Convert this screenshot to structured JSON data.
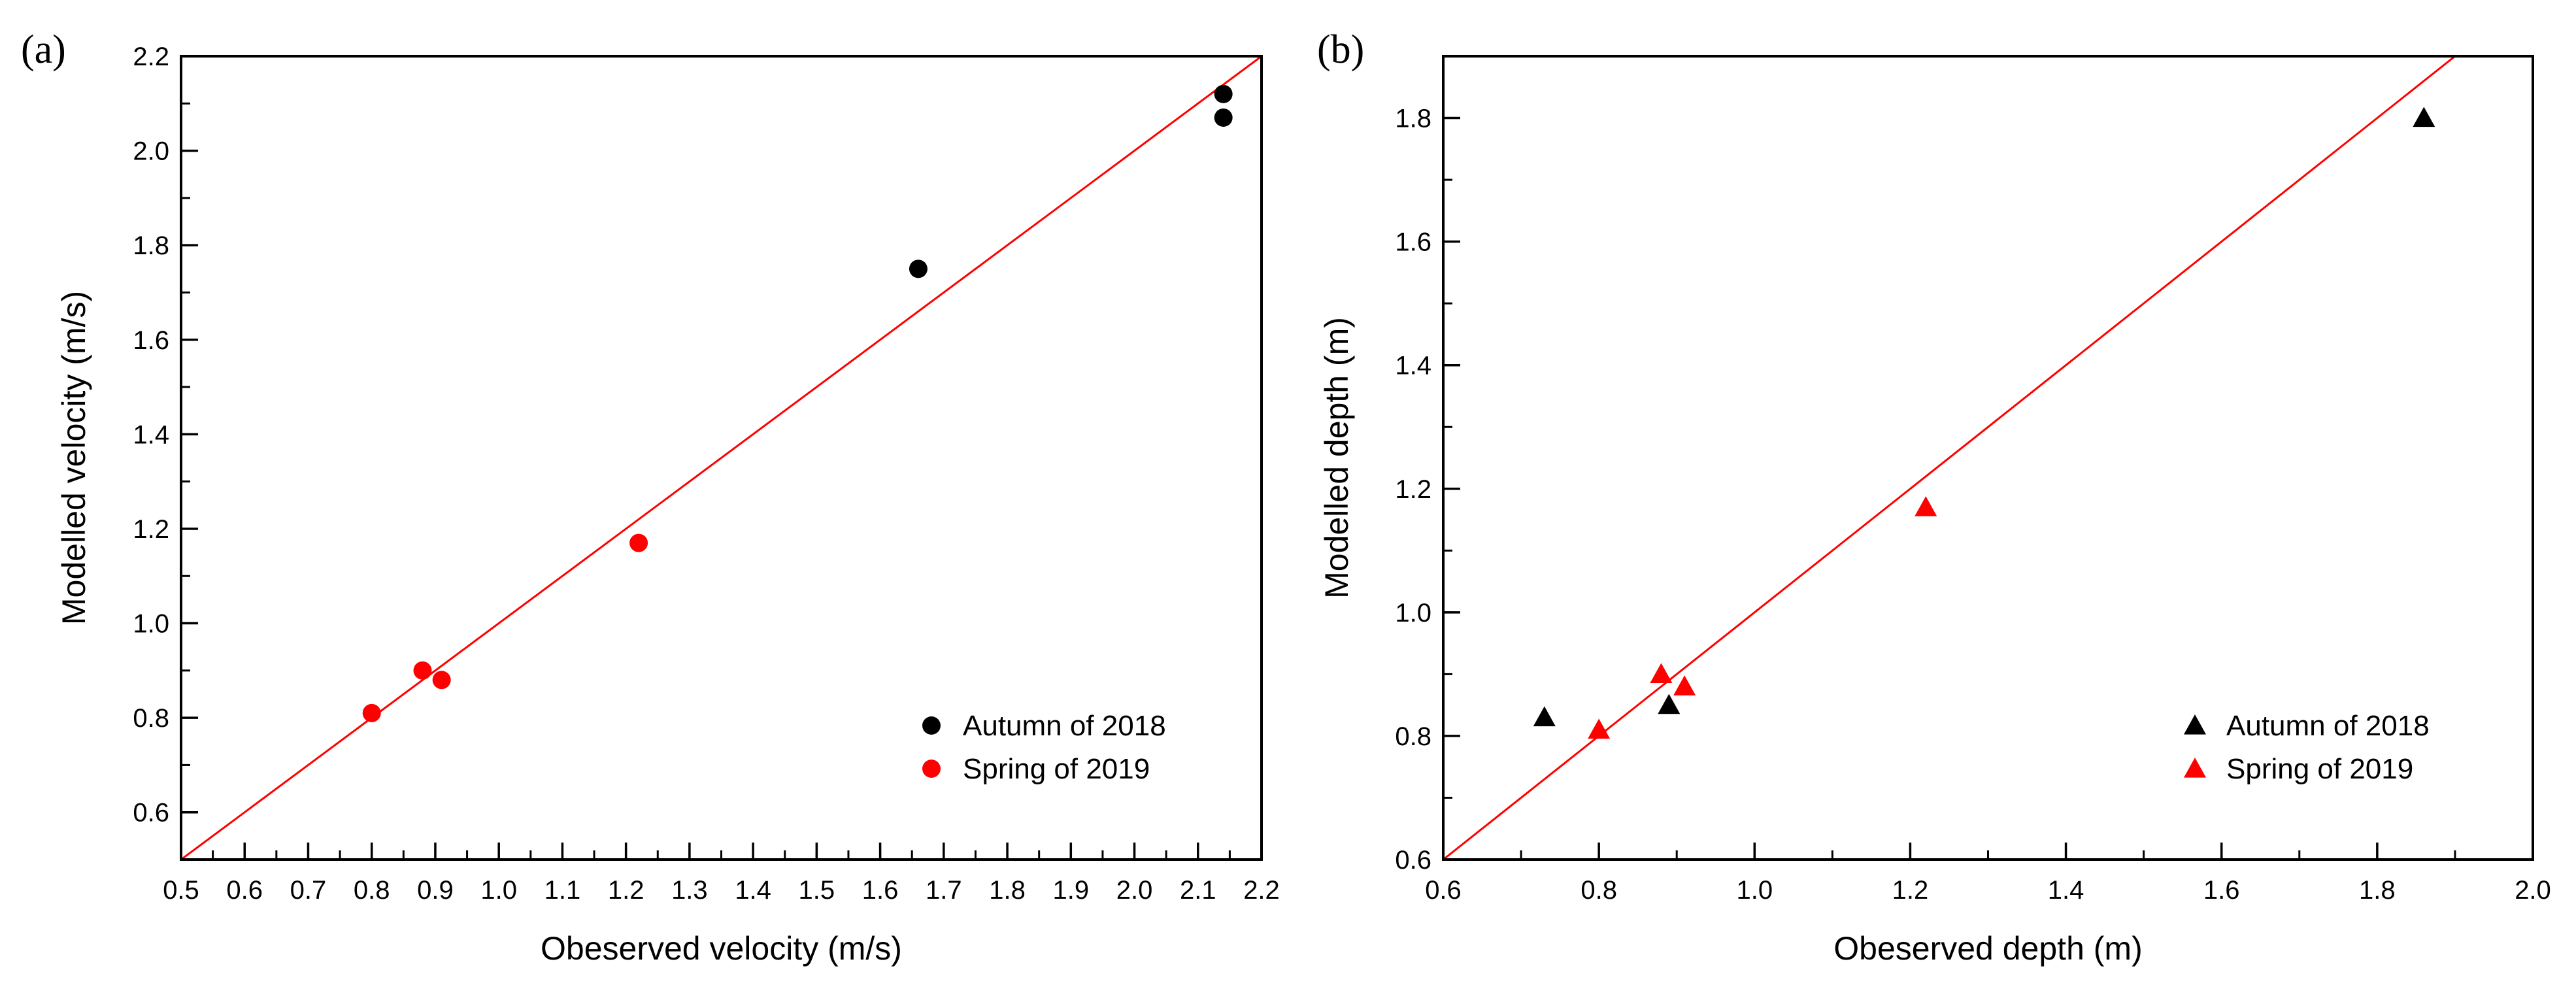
{
  "chart_data": [
    {
      "type": "scatter",
      "panel_label": "(a)",
      "xlabel": "Obeserved velocity (m/s)",
      "ylabel": "Modelled velocity (m/s)",
      "xlim": [
        0.5,
        2.2
      ],
      "ylim": [
        0.5,
        2.2
      ],
      "x_major_ticks": [
        0.5,
        0.6,
        0.7,
        0.8,
        0.9,
        1.0,
        1.1,
        1.2,
        1.3,
        1.4,
        1.5,
        1.6,
        1.7,
        1.8,
        1.9,
        2.0,
        2.1,
        2.2
      ],
      "x_tick_labels": [
        "0.5",
        "0.6",
        "0.7",
        "0.8",
        "0.9",
        "1.0",
        "1.1",
        "1.2",
        "1.3",
        "1.4",
        "1.5",
        "1.6",
        "1.7",
        "1.8",
        "1.9",
        "2.0",
        "2.1",
        "2.2"
      ],
      "x_minor_step": 0.05,
      "y_major_ticks": [
        0.6,
        0.8,
        1.0,
        1.2,
        1.4,
        1.6,
        1.8,
        2.0,
        2.2
      ],
      "y_tick_labels": [
        "0.6",
        "0.8",
        "1.0",
        "1.2",
        "1.4",
        "1.6",
        "1.8",
        "2.0",
        "2.2"
      ],
      "y_minor_step": 0.1,
      "reference_line": {
        "label": "1:1 line",
        "color": "#ff0000",
        "from": [
          0.5,
          0.5
        ],
        "to": [
          2.2,
          2.2
        ]
      },
      "legend_position": "lower-right",
      "series": [
        {
          "name": "Autumn of 2018",
          "marker": "circle",
          "color": "#000000",
          "points": [
            [
              1.66,
              1.75
            ],
            [
              2.14,
              2.12
            ],
            [
              2.14,
              2.07
            ]
          ]
        },
        {
          "name": "Spring of 2019",
          "marker": "circle",
          "color": "#ff0000",
          "points": [
            [
              0.8,
              0.81
            ],
            [
              0.88,
              0.9
            ],
            [
              0.91,
              0.88
            ],
            [
              1.22,
              1.17
            ]
          ]
        }
      ]
    },
    {
      "type": "scatter",
      "panel_label": "(b)",
      "xlabel": "Obeserved depth (m)",
      "ylabel": "Modelled depth (m)",
      "xlim": [
        0.6,
        2.0
      ],
      "ylim": [
        0.6,
        1.9
      ],
      "x_major_ticks": [
        0.6,
        0.8,
        1.0,
        1.2,
        1.4,
        1.6,
        1.8,
        2.0
      ],
      "x_tick_labels": [
        "0.6",
        "0.8",
        "1.0",
        "1.2",
        "1.4",
        "1.6",
        "1.8",
        "2.0"
      ],
      "x_minor_step": 0.1,
      "y_major_ticks": [
        0.6,
        0.8,
        1.0,
        1.2,
        1.4,
        1.6,
        1.8
      ],
      "y_tick_labels": [
        "0.6",
        "0.8",
        "1.0",
        "1.2",
        "1.4",
        "1.6",
        "1.8"
      ],
      "y_minor_step": 0.1,
      "reference_line": {
        "label": "1:1 line",
        "color": "#ff0000",
        "from": [
          0.6,
          0.6
        ],
        "to": [
          1.9,
          1.9
        ]
      },
      "legend_position": "lower-right",
      "series": [
        {
          "name": "Autumn of 2018",
          "marker": "triangle",
          "color": "#000000",
          "points": [
            [
              0.73,
              0.83
            ],
            [
              0.89,
              0.85
            ],
            [
              1.86,
              1.8
            ]
          ]
        },
        {
          "name": "Spring of 2019",
          "marker": "triangle",
          "color": "#ff0000",
          "points": [
            [
              0.8,
              0.81
            ],
            [
              0.88,
              0.9
            ],
            [
              0.91,
              0.88
            ],
            [
              1.22,
              1.17
            ]
          ]
        }
      ]
    }
  ]
}
